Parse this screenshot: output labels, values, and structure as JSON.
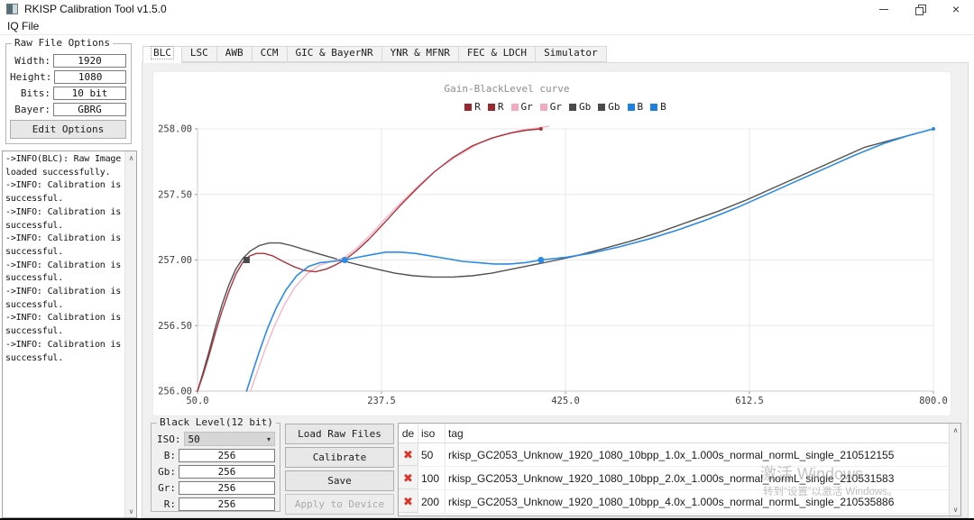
{
  "window": {
    "title": "RKISP Calibration Tool v1.5.0"
  },
  "menu": {
    "items": [
      "IQ File"
    ]
  },
  "icons": {
    "scroll_up": "∧",
    "scroll_down": "∨",
    "combo_arrow": "▾",
    "delete": "✖",
    "close": "×"
  },
  "raw_file_options": {
    "title": "Raw File Options",
    "fields": [
      {
        "name": "width",
        "label": "Width:",
        "value": "1920"
      },
      {
        "name": "height",
        "label": "Height:",
        "value": "1080"
      },
      {
        "name": "bits",
        "label": "Bits:",
        "value": "10 bit"
      },
      {
        "name": "bayer",
        "label": "Bayer:",
        "value": "GBRG"
      }
    ],
    "edit_button": "Edit Options"
  },
  "log": {
    "lines": [
      "->INFO(BLC): Raw Image loaded successfully.",
      "->INFO: Calibration is successful.",
      "->INFO: Calibration is successful.",
      "->INFO: Calibration is successful.",
      "->INFO: Calibration is successful.",
      "->INFO: Calibration is successful.",
      "->INFO: Calibration is successful.",
      "->INFO: Calibration is successful."
    ]
  },
  "tabs": {
    "items": [
      "BLC",
      "LSC",
      "AWB",
      "CCM",
      "GIC & BayerNR",
      "YNR & MFNR",
      "FEC & LDCH",
      "Simulator"
    ],
    "active": "BLC"
  },
  "chart_data": {
    "type": "line",
    "title": "Gain-BlackLevel curve",
    "xlabel": "",
    "ylabel": "",
    "xlim": [
      50,
      800
    ],
    "ylim": [
      256,
      258
    ],
    "grid": true,
    "legend_position": "top",
    "x_ticks": [
      50,
      237.5,
      425,
      612.5,
      800
    ],
    "x_tick_labels": [
      "50.0",
      "237.5",
      "425.0",
      "612.5",
      "800.0"
    ],
    "y_ticks": [
      256,
      256.5,
      257,
      257.5,
      258
    ],
    "y_tick_labels": [
      "256.00",
      "256.50",
      "257.00",
      "257.50",
      "258.00"
    ],
    "legend": [
      {
        "label": "R",
        "color": "#9b282e"
      },
      {
        "label": "R",
        "color": "#9b282e"
      },
      {
        "label": "Gr",
        "color": "#f2abbc"
      },
      {
        "label": "Gr",
        "color": "#f2abbc"
      },
      {
        "label": "Gb",
        "color": "#4a4a4a"
      },
      {
        "label": "Gb",
        "color": "#4a4a4a"
      },
      {
        "label": "B",
        "color": "#1e80e0"
      },
      {
        "label": "B",
        "color": "#1e80e0"
      }
    ],
    "calibration_points": {
      "R": [
        [
          50,
          256
        ],
        [
          100,
          257
        ],
        [
          200,
          257
        ],
        [
          400,
          258
        ]
      ],
      "Gr": [
        [
          100,
          256
        ],
        [
          200,
          257
        ],
        [
          400,
          258
        ]
      ],
      "Gb": [
        [
          50,
          256
        ],
        [
          100,
          257
        ],
        [
          200,
          257
        ],
        [
          400,
          257
        ],
        [
          800,
          258
        ]
      ],
      "B": [
        [
          100,
          256
        ],
        [
          200,
          257
        ],
        [
          400,
          257
        ],
        [
          800,
          258
        ]
      ]
    },
    "series": [
      {
        "name": "Gb",
        "color": "#515151",
        "width": 1.4,
        "points": [
          [
            50,
            256.0
          ],
          [
            56,
            256.15
          ],
          [
            62,
            256.31
          ],
          [
            68,
            256.48
          ],
          [
            75,
            256.66
          ],
          [
            82,
            256.81
          ],
          [
            89,
            256.93
          ],
          [
            96,
            257.01
          ],
          [
            104,
            257.07
          ],
          [
            113,
            257.11
          ],
          [
            123,
            257.13
          ],
          [
            134,
            257.13
          ],
          [
            146,
            257.11
          ],
          [
            159,
            257.08
          ],
          [
            172,
            257.05
          ],
          [
            186,
            257.02
          ],
          [
            200,
            256.99
          ],
          [
            216,
            256.96
          ],
          [
            233,
            256.93
          ],
          [
            251,
            256.9
          ],
          [
            270,
            256.88
          ],
          [
            290,
            256.87
          ],
          [
            310,
            256.87
          ],
          [
            330,
            256.88
          ],
          [
            350,
            256.9
          ],
          [
            370,
            256.93
          ],
          [
            390,
            256.96
          ],
          [
            410,
            256.99
          ],
          [
            435,
            257.03
          ],
          [
            460,
            257.08
          ],
          [
            490,
            257.14
          ],
          [
            520,
            257.21
          ],
          [
            550,
            257.29
          ],
          [
            580,
            257.37
          ],
          [
            610,
            257.46
          ],
          [
            640,
            257.56
          ],
          [
            670,
            257.66
          ],
          [
            700,
            257.76
          ],
          [
            730,
            257.86
          ],
          [
            765,
            257.93
          ],
          [
            800,
            258.0
          ]
        ]
      },
      {
        "name": "Gr",
        "color": "#f6b6c5",
        "width": 1.4,
        "points": [
          [
            104,
            256.0
          ],
          [
            111,
            256.15
          ],
          [
            119,
            256.32
          ],
          [
            128,
            256.49
          ],
          [
            138,
            256.65
          ],
          [
            149,
            256.79
          ],
          [
            161,
            256.89
          ],
          [
            174,
            256.96
          ],
          [
            187,
            256.99
          ],
          [
            200,
            257.02
          ],
          [
            212,
            257.09
          ],
          [
            226,
            257.19
          ],
          [
            242,
            257.32
          ],
          [
            259,
            257.45
          ],
          [
            277,
            257.58
          ],
          [
            296,
            257.7
          ],
          [
            316,
            257.8
          ],
          [
            337,
            257.89
          ],
          [
            358,
            257.95
          ],
          [
            379,
            257.99
          ],
          [
            400,
            258.01
          ],
          [
            408,
            258.02
          ]
        ]
      },
      {
        "name": "R",
        "color": "#aa3339",
        "width": 1.4,
        "points": [
          [
            50,
            256.0
          ],
          [
            56,
            256.13
          ],
          [
            62,
            256.28
          ],
          [
            68,
            256.44
          ],
          [
            75,
            256.61
          ],
          [
            82,
            256.76
          ],
          [
            89,
            256.89
          ],
          [
            96,
            256.98
          ],
          [
            103,
            257.03
          ],
          [
            110,
            257.05
          ],
          [
            118,
            257.05
          ],
          [
            127,
            257.03
          ],
          [
            137,
            256.99
          ],
          [
            148,
            256.95
          ],
          [
            159,
            256.92
          ],
          [
            170,
            256.91
          ],
          [
            181,
            256.93
          ],
          [
            190,
            256.96
          ],
          [
            200,
            257.0
          ],
          [
            212,
            257.07
          ],
          [
            225,
            257.16
          ],
          [
            240,
            257.28
          ],
          [
            256,
            257.41
          ],
          [
            273,
            257.54
          ],
          [
            291,
            257.67
          ],
          [
            310,
            257.78
          ],
          [
            330,
            257.87
          ],
          [
            350,
            257.93
          ],
          [
            370,
            257.97
          ],
          [
            385,
            257.99
          ],
          [
            400,
            258.0
          ]
        ]
      },
      {
        "name": "B",
        "color": "#2a8be8",
        "width": 1.6,
        "points": [
          [
            100,
            256.0
          ],
          [
            106,
            256.14
          ],
          [
            113,
            256.3
          ],
          [
            121,
            256.47
          ],
          [
            130,
            256.63
          ],
          [
            140,
            256.77
          ],
          [
            151,
            256.88
          ],
          [
            163,
            256.95
          ],
          [
            175,
            256.98
          ],
          [
            188,
            256.99
          ],
          [
            200,
            257.0
          ],
          [
            213,
            257.02
          ],
          [
            227,
            257.04
          ],
          [
            242,
            257.06
          ],
          [
            257,
            257.06
          ],
          [
            272,
            257.05
          ],
          [
            288,
            257.03
          ],
          [
            304,
            257.01
          ],
          [
            320,
            256.99
          ],
          [
            336,
            256.98
          ],
          [
            352,
            256.97
          ],
          [
            368,
            256.97
          ],
          [
            384,
            256.98
          ],
          [
            400,
            257.0
          ],
          [
            425,
            257.02
          ],
          [
            450,
            257.05
          ],
          [
            480,
            257.1
          ],
          [
            510,
            257.16
          ],
          [
            540,
            257.23
          ],
          [
            570,
            257.31
          ],
          [
            600,
            257.4
          ],
          [
            630,
            257.5
          ],
          [
            660,
            257.6
          ],
          [
            690,
            257.7
          ],
          [
            720,
            257.8
          ],
          [
            750,
            257.89
          ],
          [
            775,
            257.95
          ],
          [
            800,
            258.0
          ]
        ]
      }
    ],
    "markers": [
      {
        "x": 100,
        "y": 257.0,
        "shape": "square",
        "color": "#4a4a4a",
        "size": 7
      },
      {
        "x": 200,
        "y": 257.0,
        "shape": "circle",
        "color": "#2a8be8",
        "size": 7
      },
      {
        "x": 400,
        "y": 257.0,
        "shape": "circle",
        "color": "#2a8be8",
        "size": 7
      },
      {
        "x": 400,
        "y": 258.0,
        "shape": "circle",
        "color": "#aa3339",
        "size": 4
      },
      {
        "x": 800,
        "y": 258.0,
        "shape": "circle",
        "color": "#2a8be8",
        "size": 4
      }
    ]
  },
  "black_level": {
    "title": "Black Level(12 bit)",
    "iso_label": "ISO:",
    "iso_value": "50",
    "fields": [
      {
        "name": "b",
        "label": "B:",
        "value": "256"
      },
      {
        "name": "gb",
        "label": "Gb:",
        "value": "256"
      },
      {
        "name": "gr",
        "label": "Gr:",
        "value": "256"
      },
      {
        "name": "r",
        "label": "R:",
        "value": "256"
      }
    ]
  },
  "actions": {
    "load": "Load Raw Files",
    "calibrate": "Calibrate",
    "save": "Save",
    "apply": "Apply to Device"
  },
  "table": {
    "columns": [
      "de",
      "iso",
      "tag"
    ],
    "rows": [
      {
        "iso": "50",
        "tag": "rkisp_GC2053_Unknow_1920_1080_10bpp_1.0x_1.000s_normal_normL_single_210512155"
      },
      {
        "iso": "100",
        "tag": "rkisp_GC2053_Unknow_1920_1080_10bpp_2.0x_1.000s_normal_normL_single_210531583"
      },
      {
        "iso": "200",
        "tag": "rkisp_GC2053_Unknow_1920_1080_10bpp_4.0x_1.000s_normal_normL_single_210535886"
      }
    ]
  },
  "watermark": {
    "line1": "激活 Windows",
    "line2": "转到“设置”以激活 Windows。"
  }
}
